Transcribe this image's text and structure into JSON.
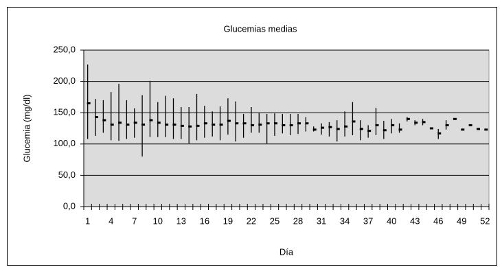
{
  "chart_data": {
    "type": "stock",
    "title": "Glucemias medias",
    "xlabel": "Día",
    "ylabel": "Glucemia (mg/dl)",
    "categories": [
      "1",
      null,
      null,
      "4",
      null,
      null,
      "7",
      null,
      null,
      "10",
      null,
      null,
      "13",
      null,
      null,
      "16",
      null,
      null,
      "19",
      null,
      null,
      "22",
      null,
      null,
      "25",
      null,
      null,
      "28",
      null,
      null,
      "31",
      null,
      null,
      "34",
      null,
      null,
      "37",
      null,
      null,
      "40",
      null,
      null,
      "43",
      null,
      null,
      "46",
      null,
      null,
      "49",
      null,
      null,
      "52"
    ],
    "high": [
      227,
      172,
      170,
      183,
      196,
      170,
      157,
      178,
      201,
      167,
      177,
      173,
      159,
      159,
      180,
      161,
      152,
      160,
      173,
      168,
      148,
      159,
      150,
      148,
      149,
      148,
      148,
      148,
      143,
      128,
      133,
      135,
      138,
      152,
      167,
      138,
      130,
      158,
      137,
      140,
      133,
      143,
      138,
      140,
      126,
      124,
      138,
      141,
      124,
      131,
      125,
      124
    ],
    "low": [
      108,
      113,
      118,
      106,
      105,
      108,
      110,
      80,
      111,
      111,
      111,
      108,
      108,
      101,
      106,
      110,
      112,
      106,
      115,
      104,
      110,
      118,
      118,
      101,
      113,
      117,
      114,
      116,
      120,
      120,
      115,
      112,
      104,
      112,
      114,
      106,
      110,
      114,
      108,
      117,
      118,
      136,
      130,
      130,
      124,
      108,
      123,
      139,
      122,
      129,
      123,
      122
    ],
    "mean": [
      165,
      143,
      138,
      131,
      134,
      131,
      134,
      131,
      138,
      134,
      131,
      131,
      129,
      128,
      129,
      133,
      131,
      131,
      137,
      133,
      133,
      130,
      131,
      133,
      133,
      130,
      130,
      133,
      133,
      123,
      126,
      127,
      124,
      128,
      136,
      124,
      121,
      130,
      122,
      130,
      123,
      140,
      134,
      135,
      125,
      117,
      130,
      140,
      123,
      130,
      124,
      123
    ],
    "color": "#000000",
    "ylim": [
      0,
      250
    ],
    "yticks": [
      {
        "value": 0,
        "label": "0,0"
      },
      {
        "value": 50,
        "label": "50,0"
      },
      {
        "value": 100,
        "label": "100,0"
      },
      {
        "value": 150,
        "label": "150,0"
      },
      {
        "value": 200,
        "label": "200,0"
      },
      {
        "value": 250,
        "label": "250,0"
      }
    ],
    "grid": true
  }
}
